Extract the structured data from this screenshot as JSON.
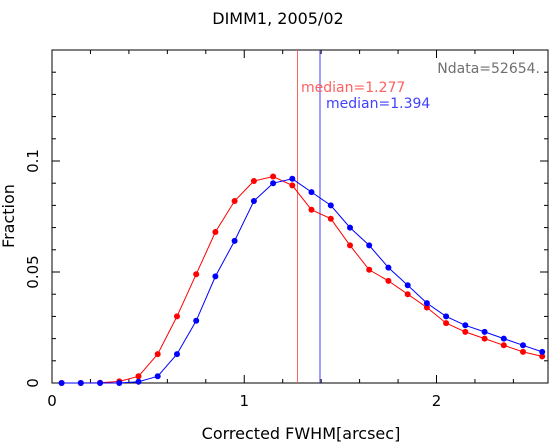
{
  "chart_data": {
    "type": "line",
    "title": "DIMM1, 2005/02",
    "xlabel": "Corrected FWHM[arcsec]",
    "ylabel": "Fraction",
    "xlim": [
      0,
      2.58
    ],
    "ylim": [
      0,
      0.15
    ],
    "xticks": [
      0,
      1,
      2
    ],
    "xtick_labels": [
      "0",
      "1",
      "2"
    ],
    "yticks": [
      0,
      0.05,
      0.1
    ],
    "ytick_labels": [
      "0",
      "0.05",
      "0.1"
    ],
    "grid": false,
    "annotations": {
      "ndata": "Ndata=52654.",
      "median_red": "median=1.277",
      "median_blue": "median=1.394"
    },
    "medians": {
      "red": 1.277,
      "blue": 1.394
    },
    "series": [
      {
        "color": "#ff0000",
        "x": [
          0.05,
          0.15,
          0.25,
          0.35,
          0.45,
          0.55,
          0.65,
          0.75,
          0.85,
          0.95,
          1.05,
          1.15,
          1.25,
          1.35,
          1.45,
          1.55,
          1.65,
          1.75,
          1.85,
          1.95,
          2.05,
          2.15,
          2.25,
          2.35,
          2.45,
          2.55
        ],
        "values": [
          0.0,
          0.0,
          0.0001,
          0.0007,
          0.003,
          0.013,
          0.03,
          0.049,
          0.068,
          0.082,
          0.091,
          0.093,
          0.089,
          0.078,
          0.074,
          0.062,
          0.051,
          0.046,
          0.04,
          0.034,
          0.027,
          0.023,
          0.02,
          0.017,
          0.014,
          0.012
        ]
      },
      {
        "color": "#0000ff",
        "x": [
          0.05,
          0.15,
          0.25,
          0.35,
          0.45,
          0.55,
          0.65,
          0.75,
          0.85,
          0.95,
          1.05,
          1.15,
          1.25,
          1.35,
          1.45,
          1.55,
          1.65,
          1.75,
          1.85,
          1.95,
          2.05,
          2.15,
          2.25,
          2.35,
          2.45,
          2.55
        ],
        "values": [
          0.0,
          0.0,
          0.0,
          0.0,
          0.0006,
          0.003,
          0.013,
          0.028,
          0.048,
          0.064,
          0.082,
          0.09,
          0.092,
          0.086,
          0.08,
          0.07,
          0.062,
          0.052,
          0.044,
          0.036,
          0.03,
          0.026,
          0.023,
          0.02,
          0.017,
          0.014
        ]
      }
    ]
  }
}
